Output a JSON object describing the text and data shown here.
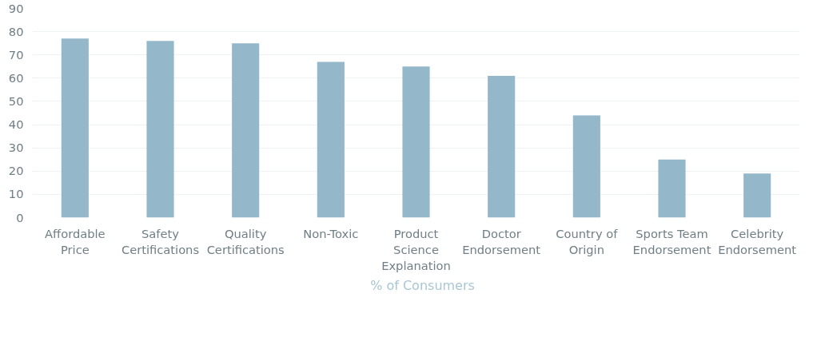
{
  "chart_data": {
    "type": "bar",
    "categories": [
      "Affordable Price",
      "Safety Certifications",
      "Quality Certifications",
      "Non-Toxic",
      "Product Science Explanation",
      "Doctor Endorsement",
      "Country of Origin",
      "Sports Team Endorsement",
      "Celebrity Endorsement"
    ],
    "series": [
      {
        "name": "% of Consumers",
        "color": "#94b8ca",
        "values": [
          77,
          76,
          75,
          67,
          65,
          61,
          44,
          25,
          19
        ]
      }
    ],
    "ylim": [
      0,
      90
    ],
    "yticks": [
      0,
      10,
      20,
      30,
      40,
      50,
      60,
      70,
      80,
      90
    ],
    "grid": "y",
    "legend": "bottom"
  }
}
